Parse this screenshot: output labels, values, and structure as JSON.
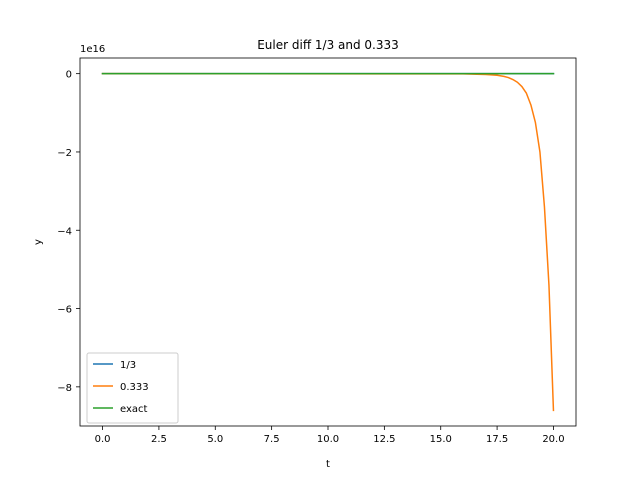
{
  "chart_data": {
    "type": "line",
    "title": "Euler diff 1/3 and 0.333",
    "xlabel": "t",
    "ylabel": "y",
    "y_offset_label": "1e16",
    "y_scale": 1e+16,
    "xlim": [
      -1.0,
      21.0
    ],
    "ylim": [
      -9.0,
      0.4
    ],
    "xticks": [
      0.0,
      2.5,
      5.0,
      7.5,
      10.0,
      12.5,
      15.0,
      17.5,
      20.0
    ],
    "xtick_labels": [
      "0.0",
      "2.5",
      "5.0",
      "7.5",
      "10.0",
      "12.5",
      "15.0",
      "17.5",
      "20.0"
    ],
    "yticks": [
      0,
      -2,
      -4,
      -6,
      -8
    ],
    "ytick_labels": [
      "0",
      "−2",
      "−4",
      "−6",
      "−8"
    ],
    "grid": false,
    "legend_position": "lower-left",
    "series": [
      {
        "name": "1/3",
        "color": "#1f77b4",
        "x": [
          0,
          20
        ],
        "y": [
          0,
          0
        ]
      },
      {
        "name": "0.333",
        "color": "#ff7f0e",
        "x": [
          0,
          16.0,
          17.0,
          17.5,
          17.8,
          18.0,
          18.2,
          18.4,
          18.6,
          18.8,
          19.0,
          19.2,
          19.4,
          19.6,
          19.8,
          20.0
        ],
        "y": [
          0,
          -0.005,
          -0.02,
          -0.04,
          -0.07,
          -0.1,
          -0.15,
          -0.22,
          -0.33,
          -0.5,
          -0.8,
          -1.25,
          -2.0,
          -3.4,
          -5.4,
          -8.6
        ]
      },
      {
        "name": "exact",
        "color": "#2ca02c",
        "x": [
          0,
          20
        ],
        "y": [
          0,
          0
        ]
      }
    ]
  }
}
